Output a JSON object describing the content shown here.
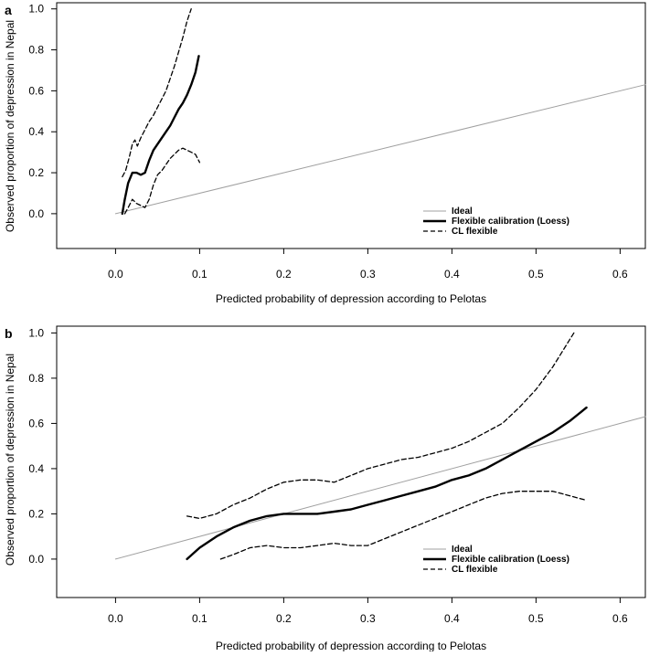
{
  "chart_data": [
    {
      "panel": "a",
      "type": "line",
      "xlabel": "Predicted probability of depression according to Pelotas",
      "ylabel": "Observed proportion of depression in Nepal",
      "xlim": [
        -0.07,
        0.63
      ],
      "ylim": [
        -0.17,
        1.03
      ],
      "xticks": [
        "0.0",
        "0.1",
        "0.2",
        "0.3",
        "0.4",
        "0.5",
        "0.6"
      ],
      "yticks": [
        "0.0",
        "0.2",
        "0.4",
        "0.6",
        "0.8",
        "1.0"
      ],
      "legend": {
        "position": "bottom-right",
        "entries": [
          "Ideal",
          "Flexible calibration (Loess)",
          "CL flexible"
        ]
      },
      "series": [
        {
          "name": "Ideal",
          "color": "#a0a0a0",
          "style": "solid",
          "x": [
            0,
            0.63
          ],
          "y": [
            0,
            0.63
          ]
        },
        {
          "name": "Flexible calibration (Loess)",
          "color": "#000000",
          "style": "thick",
          "x": [
            0.008,
            0.011,
            0.015,
            0.02,
            0.025,
            0.03,
            0.035,
            0.04,
            0.045,
            0.05,
            0.055,
            0.06,
            0.065,
            0.07,
            0.075,
            0.08,
            0.085,
            0.09,
            0.095,
            0.099
          ],
          "y": [
            0.0,
            0.07,
            0.15,
            0.2,
            0.2,
            0.19,
            0.2,
            0.26,
            0.31,
            0.34,
            0.37,
            0.4,
            0.43,
            0.47,
            0.51,
            0.54,
            0.58,
            0.63,
            0.69,
            0.77
          ]
        },
        {
          "name": "CL flexible",
          "color": "#000000",
          "style": "dashed",
          "x": [
            0.008,
            0.012,
            0.016,
            0.02,
            0.023,
            0.026,
            0.03,
            0.035,
            0.04,
            0.045,
            0.05,
            0.055,
            0.06,
            0.065,
            0.07,
            0.075,
            0.08,
            0.085,
            0.09
          ],
          "y": [
            0.18,
            0.21,
            0.27,
            0.34,
            0.36,
            0.33,
            0.37,
            0.41,
            0.45,
            0.48,
            0.52,
            0.56,
            0.6,
            0.66,
            0.72,
            0.79,
            0.86,
            0.94,
            1.0
          ]
        },
        {
          "name": "CL flexible (lower)",
          "color": "#000000",
          "style": "dashed",
          "x": [
            0.011,
            0.015,
            0.02,
            0.025,
            0.03,
            0.035,
            0.04,
            0.045,
            0.05,
            0.055,
            0.06,
            0.065,
            0.07,
            0.075,
            0.08,
            0.085,
            0.09,
            0.095,
            0.1
          ],
          "y": [
            0.0,
            0.03,
            0.07,
            0.05,
            0.04,
            0.03,
            0.07,
            0.14,
            0.19,
            0.21,
            0.24,
            0.27,
            0.29,
            0.31,
            0.32,
            0.31,
            0.3,
            0.29,
            0.25
          ]
        }
      ]
    },
    {
      "panel": "b",
      "type": "line",
      "xlabel": "Predicted probability of depression according to Pelotas",
      "ylabel": "Observed proportion of depression in Nepal",
      "xlim": [
        -0.07,
        0.63
      ],
      "ylim": [
        -0.17,
        1.03
      ],
      "xticks": [
        "0.0",
        "0.1",
        "0.2",
        "0.3",
        "0.4",
        "0.5",
        "0.6"
      ],
      "yticks": [
        "0.0",
        "0.2",
        "0.4",
        "0.6",
        "0.8",
        "1.0"
      ],
      "legend": {
        "position": "bottom-right",
        "entries": [
          "Ideal",
          "Flexible calibration (Loess)",
          "CL flexible"
        ]
      },
      "series": [
        {
          "name": "Ideal",
          "color": "#a0a0a0",
          "style": "solid",
          "x": [
            0,
            0.63
          ],
          "y": [
            0,
            0.63
          ]
        },
        {
          "name": "Flexible calibration (Loess)",
          "color": "#000000",
          "style": "thick",
          "x": [
            0.085,
            0.1,
            0.12,
            0.14,
            0.16,
            0.18,
            0.2,
            0.22,
            0.24,
            0.26,
            0.28,
            0.3,
            0.32,
            0.34,
            0.36,
            0.38,
            0.4,
            0.42,
            0.44,
            0.46,
            0.48,
            0.5,
            0.52,
            0.54,
            0.56
          ],
          "y": [
            0.0,
            0.05,
            0.1,
            0.14,
            0.17,
            0.19,
            0.2,
            0.2,
            0.2,
            0.21,
            0.22,
            0.24,
            0.26,
            0.28,
            0.3,
            0.32,
            0.35,
            0.37,
            0.4,
            0.44,
            0.48,
            0.52,
            0.56,
            0.61,
            0.67
          ]
        },
        {
          "name": "CL flexible",
          "color": "#000000",
          "style": "dashed",
          "x": [
            0.085,
            0.1,
            0.12,
            0.14,
            0.16,
            0.18,
            0.2,
            0.22,
            0.24,
            0.26,
            0.28,
            0.3,
            0.32,
            0.34,
            0.36,
            0.38,
            0.4,
            0.42,
            0.44,
            0.46,
            0.48,
            0.5,
            0.52,
            0.545
          ],
          "y": [
            0.19,
            0.18,
            0.2,
            0.24,
            0.27,
            0.31,
            0.34,
            0.35,
            0.35,
            0.34,
            0.37,
            0.4,
            0.42,
            0.44,
            0.45,
            0.47,
            0.49,
            0.52,
            0.56,
            0.6,
            0.67,
            0.75,
            0.85,
            1.0
          ]
        },
        {
          "name": "CL flexible (lower)",
          "color": "#000000",
          "style": "dashed",
          "x": [
            0.125,
            0.14,
            0.16,
            0.18,
            0.2,
            0.22,
            0.24,
            0.26,
            0.28,
            0.3,
            0.32,
            0.34,
            0.36,
            0.38,
            0.4,
            0.42,
            0.44,
            0.46,
            0.48,
            0.5,
            0.52,
            0.54,
            0.56
          ],
          "y": [
            0.0,
            0.02,
            0.05,
            0.06,
            0.05,
            0.05,
            0.06,
            0.07,
            0.06,
            0.06,
            0.09,
            0.12,
            0.15,
            0.18,
            0.21,
            0.24,
            0.27,
            0.29,
            0.3,
            0.3,
            0.3,
            0.28,
            0.26
          ]
        }
      ]
    }
  ]
}
